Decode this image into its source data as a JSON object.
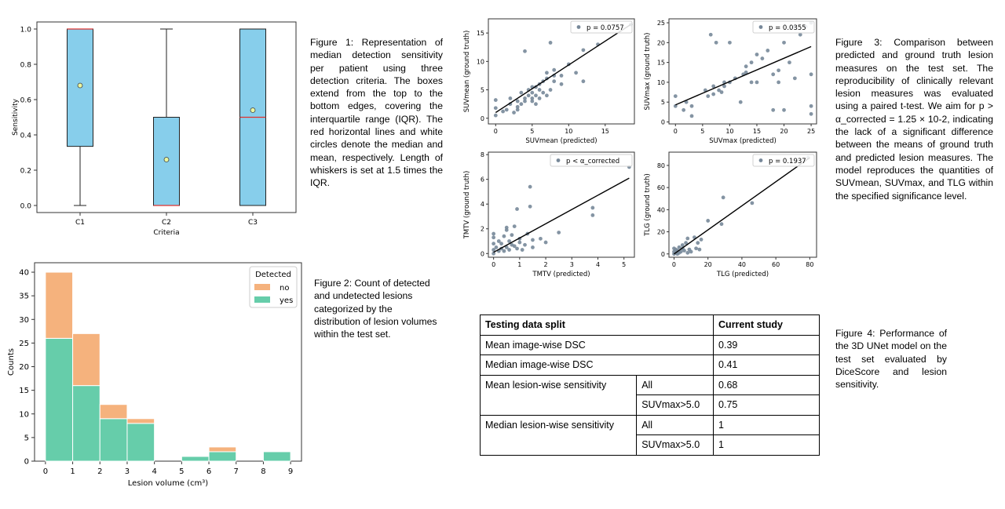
{
  "figure1": {
    "caption": "Figure 1: Representation of median detection sensitivity per patient using three detection criteria. The boxes extend from the top to the bottom edges, covering the interquartile range (IQR). The red horizontal lines and white circles denote the median and mean, respectively. Length of whiskers is set at 1.5 times the IQR."
  },
  "figure2": {
    "caption": "Figure 2: Count of detected and undetected lesions categorized by the distribution of lesion volumes within the test set."
  },
  "figure3": {
    "caption": "Figure 3: Comparison between predicted and ground truth lesion measures on the test set. The reproducibility of clinically relevant lesion measures was evaluated using a paired t-test. We aim for p > α_corrected = 1.25 × 10-2, indicating the lack of a significant difference between the means of ground truth and predicted lesion measures. The model reproduces the quantities of SUVmean, SUVmax, and TLG within the specified significance level."
  },
  "figure4": {
    "caption": "Figure 4: Performance of the 3D UNet model on the test set evaluated by DiceScore and lesion sensitivity."
  },
  "table": {
    "header": [
      "Testing data split",
      "Current study"
    ],
    "rows": [
      {
        "label": "Mean image-wise DSC",
        "value": "0.39"
      },
      {
        "label": "Median image-wise DSC",
        "value": "0.41"
      },
      {
        "label": "Mean lesion-wise sensitivity",
        "sub": [
          [
            "All",
            "0.68"
          ],
          [
            "SUVmax>5.0",
            "0.75"
          ]
        ]
      },
      {
        "label": "Median lesion-wise sensitivity",
        "sub": [
          [
            "All",
            "1"
          ],
          [
            "SUVmax>5.0",
            "1"
          ]
        ]
      }
    ]
  },
  "chart_data": [
    {
      "type": "box",
      "xlabel": "Criteria",
      "ylabel": "Sensitivity",
      "categories": [
        "C1",
        "C2",
        "C3"
      ],
      "ylim": [
        -0.04,
        1.04
      ],
      "yticks": [
        "0.0",
        "0.2",
        "0.4",
        "0.6",
        "0.8",
        "1.0"
      ],
      "boxes": [
        {
          "q1": 0.335,
          "median": 1.0,
          "q3": 1.0,
          "whisker_low": 0.0,
          "whisker_high": 1.0,
          "mean": 0.68
        },
        {
          "q1": 0.0,
          "median": 0.0,
          "q3": 0.5,
          "whisker_low": 0.0,
          "whisker_high": 1.0,
          "mean": 0.26
        },
        {
          "q1": 0.0,
          "median": 0.5,
          "q3": 1.0,
          "whisker_low": 0.0,
          "whisker_high": 1.0,
          "mean": 0.54
        }
      ],
      "colors": {
        "box": "#87ceeb",
        "median": "#e0322f",
        "mean": "#eaf7a0"
      }
    },
    {
      "type": "bar",
      "stacked": true,
      "xlabel": "Lesion volume (cm³)",
      "ylabel": "Counts",
      "xlim": [
        -0.4,
        9.4
      ],
      "ylim": [
        0,
        42
      ],
      "xticks": [
        "0",
        "1",
        "2",
        "3",
        "4",
        "5",
        "6",
        "7",
        "8",
        "9"
      ],
      "yticks": [
        "0",
        "5",
        "10",
        "15",
        "20",
        "25",
        "30",
        "35",
        "40"
      ],
      "bin_edges": [
        0,
        1,
        2,
        3,
        4,
        5,
        6,
        7,
        8,
        9
      ],
      "legend_title": "Detected",
      "legend_position": "top-right",
      "series": [
        {
          "name": "yes",
          "color": "#66cdaa",
          "values": [
            26,
            16,
            9,
            8,
            0,
            1,
            2,
            0,
            2
          ]
        },
        {
          "name": "no",
          "color": "#f5b27d",
          "values": [
            14,
            11,
            3,
            1,
            0,
            0,
            1,
            0,
            0
          ]
        }
      ]
    },
    {
      "type": "scatter",
      "xlabel": "SUVmean (predicted)",
      "ylabel": "SUVmean (ground truth)",
      "legend": "p = 0.0757",
      "xlim": [
        -1,
        19
      ],
      "ylim": [
        -1,
        17.5
      ],
      "xticks": [
        0,
        5,
        10,
        15
      ],
      "yticks": [
        0,
        5,
        10,
        15
      ],
      "fit": [
        [
          0,
          1.0
        ],
        [
          18.5,
          16.5
        ]
      ],
      "points": [
        [
          0,
          0.5
        ],
        [
          0,
          1.8
        ],
        [
          0,
          3.2
        ],
        [
          1.5,
          1.5
        ],
        [
          2,
          2.5
        ],
        [
          2,
          3.5
        ],
        [
          2.5,
          1
        ],
        [
          3,
          1.5
        ],
        [
          3,
          3
        ],
        [
          3.5,
          2.5
        ],
        [
          3.5,
          4.5
        ],
        [
          4,
          3
        ],
        [
          4,
          3.5
        ],
        [
          4,
          11.8
        ],
        [
          4.5,
          4
        ],
        [
          4.5,
          5
        ],
        [
          5,
          3
        ],
        [
          5,
          3.5
        ],
        [
          5,
          4.5
        ],
        [
          5,
          5.5
        ],
        [
          5.5,
          2.5
        ],
        [
          5.5,
          4
        ],
        [
          5.5,
          5.5
        ],
        [
          6,
          3.5
        ],
        [
          6,
          5
        ],
        [
          6,
          6
        ],
        [
          6.5,
          4.5
        ],
        [
          6.5,
          6.5
        ],
        [
          7,
          4
        ],
        [
          7,
          7
        ],
        [
          7,
          8
        ],
        [
          7.5,
          5
        ],
        [
          7.5,
          13.3
        ],
        [
          8,
          6.5
        ],
        [
          8,
          7.5
        ],
        [
          8,
          8.5
        ],
        [
          9,
          6
        ],
        [
          9,
          7.5
        ],
        [
          10,
          9.5
        ],
        [
          11,
          8
        ],
        [
          12,
          6.5
        ],
        [
          12,
          12
        ],
        [
          14,
          13
        ],
        [
          18.5,
          16.5
        ],
        [
          3,
          2
        ],
        [
          1,
          1.2
        ]
      ],
      "color": "#778899"
    },
    {
      "type": "scatter",
      "xlabel": "SUVmax (predicted)",
      "ylabel": "SUVmax (ground truth)",
      "legend": "p = 0.0355",
      "xlim": [
        -1.2,
        26
      ],
      "ylim": [
        -0.5,
        26
      ],
      "xticks": [
        0,
        5,
        10,
        15,
        20,
        25
      ],
      "yticks": [
        0,
        5,
        10,
        15,
        20,
        25
      ],
      "fit": [
        [
          0,
          4.3
        ],
        [
          25,
          19
        ]
      ],
      "points": [
        [
          0,
          4
        ],
        [
          0,
          6.5
        ],
        [
          1.5,
          3
        ],
        [
          2,
          5
        ],
        [
          3,
          4
        ],
        [
          3,
          1.5
        ],
        [
          5.5,
          8
        ],
        [
          6,
          6.5
        ],
        [
          6.5,
          22
        ],
        [
          7,
          7
        ],
        [
          7,
          9
        ],
        [
          7.5,
          20
        ],
        [
          8,
          8
        ],
        [
          8.5,
          7.5
        ],
        [
          9,
          9
        ],
        [
          9,
          10
        ],
        [
          10,
          10
        ],
        [
          10,
          20
        ],
        [
          11,
          11
        ],
        [
          12,
          5
        ],
        [
          12.5,
          12
        ],
        [
          13,
          12.5
        ],
        [
          13,
          14
        ],
        [
          14,
          15
        ],
        [
          14,
          10
        ],
        [
          15,
          10
        ],
        [
          15,
          17
        ],
        [
          16,
          16
        ],
        [
          17,
          18
        ],
        [
          18,
          3
        ],
        [
          18,
          12
        ],
        [
          19,
          10
        ],
        [
          19,
          13
        ],
        [
          20,
          20
        ],
        [
          20,
          3
        ],
        [
          21,
          15
        ],
        [
          22,
          11
        ],
        [
          22,
          24
        ],
        [
          23,
          22
        ],
        [
          24,
          24
        ],
        [
          25,
          25
        ],
        [
          25,
          4
        ],
        [
          25,
          2
        ],
        [
          25,
          12
        ]
      ],
      "color": "#778899"
    },
    {
      "type": "scatter",
      "xlabel": "TMTV (predicted)",
      "ylabel": "TMTV (ground truth)",
      "legend": "p < α_corrected",
      "xlim": [
        -0.2,
        5.4
      ],
      "ylim": [
        -0.3,
        8.2
      ],
      "xticks": [
        0,
        1,
        2,
        3,
        4,
        5
      ],
      "yticks": [
        0,
        2,
        4,
        6,
        8
      ],
      "fit": [
        [
          0,
          0.1
        ],
        [
          5.2,
          6.1
        ]
      ],
      "points": [
        [
          0,
          0
        ],
        [
          0,
          0.3
        ],
        [
          0,
          0.8
        ],
        [
          0,
          1.3
        ],
        [
          0,
          1.6
        ],
        [
          0.1,
          0.5
        ],
        [
          0.2,
          0.2
        ],
        [
          0.2,
          1
        ],
        [
          0.3,
          0.4
        ],
        [
          0.3,
          0.8
        ],
        [
          0.4,
          0.2
        ],
        [
          0.4,
          1.4
        ],
        [
          0.5,
          0.5
        ],
        [
          0.5,
          1.9
        ],
        [
          0.5,
          2.1
        ],
        [
          0.6,
          0.3
        ],
        [
          0.6,
          1
        ],
        [
          0.7,
          0.7
        ],
        [
          0.7,
          1.5
        ],
        [
          0.8,
          0.6
        ],
        [
          0.8,
          2.2
        ],
        [
          0.9,
          0.4
        ],
        [
          0.9,
          3.6
        ],
        [
          1.0,
          0.9
        ],
        [
          1.0,
          1.2
        ],
        [
          1.1,
          0.3
        ],
        [
          1.2,
          0.7
        ],
        [
          1.3,
          1.6
        ],
        [
          1.4,
          3.8
        ],
        [
          1.4,
          5.4
        ],
        [
          1.5,
          1.1
        ],
        [
          1.5,
          0.5
        ],
        [
          1.8,
          1.2
        ],
        [
          2,
          0.9
        ],
        [
          2.5,
          1.7
        ],
        [
          3.8,
          3.1
        ],
        [
          3.8,
          3.7
        ],
        [
          5.2,
          7
        ]
      ],
      "color": "#778899"
    },
    {
      "type": "scatter",
      "xlabel": "TLG (predicted)",
      "ylabel": "TLG (ground truth)",
      "legend": "p = 0.1937",
      "xlim": [
        -3,
        84
      ],
      "ylim": [
        -3,
        92
      ],
      "xticks": [
        0,
        20,
        40,
        60,
        80
      ],
      "yticks": [
        0,
        20,
        40,
        60,
        80
      ],
      "fit": [
        [
          0,
          0
        ],
        [
          80,
          87
        ]
      ],
      "points": [
        [
          0,
          0
        ],
        [
          0,
          2
        ],
        [
          0,
          5
        ],
        [
          1,
          1
        ],
        [
          1,
          4
        ],
        [
          2,
          0
        ],
        [
          2,
          3
        ],
        [
          3,
          1
        ],
        [
          3,
          6
        ],
        [
          4,
          2
        ],
        [
          5,
          5
        ],
        [
          5,
          8
        ],
        [
          6,
          3
        ],
        [
          7,
          10
        ],
        [
          8,
          1
        ],
        [
          8,
          14
        ],
        [
          9,
          4
        ],
        [
          10,
          2
        ],
        [
          12,
          15
        ],
        [
          13,
          5
        ],
        [
          14,
          10
        ],
        [
          15,
          4
        ],
        [
          16,
          13
        ],
        [
          20,
          30
        ],
        [
          28,
          27
        ],
        [
          29,
          51
        ],
        [
          46,
          46
        ],
        [
          79,
          87
        ]
      ],
      "color": "#778899"
    }
  ]
}
